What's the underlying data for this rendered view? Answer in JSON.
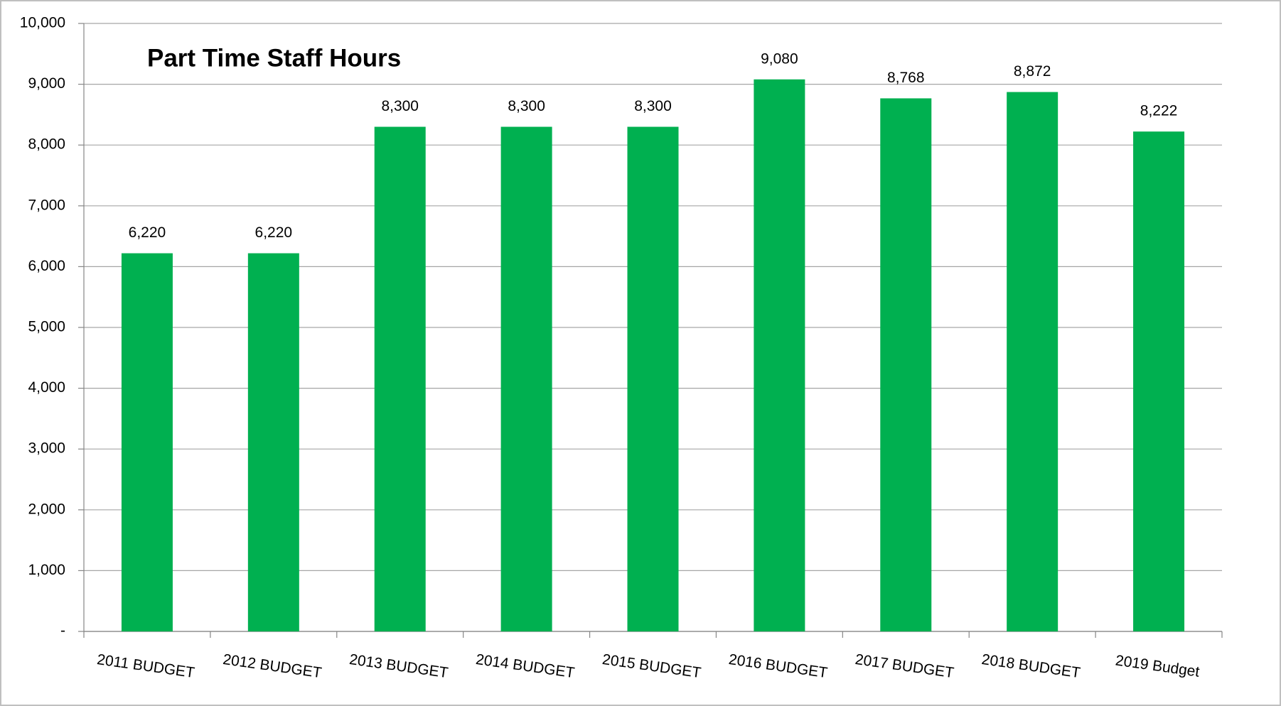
{
  "chart_data": {
    "type": "bar",
    "title": "Part Time Staff Hours",
    "categories": [
      "2011 BUDGET",
      "2012 BUDGET",
      "2013 BUDGET",
      "2014 BUDGET",
      "2015 BUDGET",
      "2016 BUDGET",
      "2017 BUDGET",
      "2018 BUDGET",
      "2019 Budget"
    ],
    "values": [
      6220,
      6220,
      8300,
      8300,
      8300,
      9080,
      8768,
      8872,
      8222
    ],
    "value_labels": [
      "6,220",
      "6,220",
      "8,300",
      "8,300",
      "8,300",
      "9,080",
      "8,768",
      "8,872",
      "8,222"
    ],
    "color": "#00b050",
    "ylim": [
      0,
      10000
    ],
    "yticks": [
      {
        "value": 0,
        "label": "-"
      },
      {
        "value": 1000,
        "label": "1,000"
      },
      {
        "value": 2000,
        "label": "2,000"
      },
      {
        "value": 3000,
        "label": "3,000"
      },
      {
        "value": 4000,
        "label": "4,000"
      },
      {
        "value": 5000,
        "label": "5,000"
      },
      {
        "value": 6000,
        "label": "6,000"
      },
      {
        "value": 7000,
        "label": "7,000"
      },
      {
        "value": 8000,
        "label": "8,000"
      },
      {
        "value": 9000,
        "label": "9,000"
      },
      {
        "value": 10000,
        "label": "10,000"
      }
    ],
    "grid": true
  }
}
